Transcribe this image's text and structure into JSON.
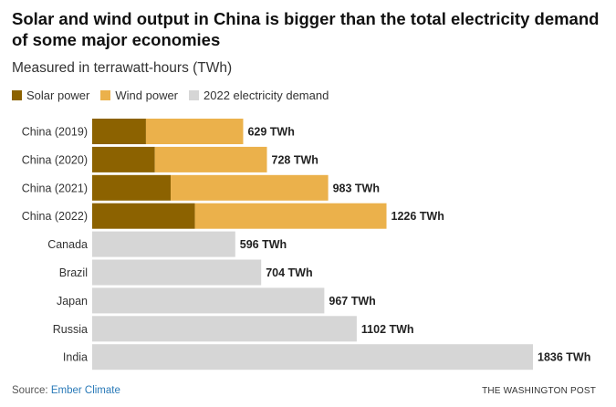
{
  "title": "Solar and wind output in China is bigger than the total electricity demand of some major economies",
  "subtitle": "Measured in terrawatt-hours (TWh)",
  "legend": [
    {
      "label": "Solar power",
      "color": "#8c6200"
    },
    {
      "label": "Wind power",
      "color": "#ebb14b"
    },
    {
      "label": "2022 electricity demand",
      "color": "#d6d6d6"
    }
  ],
  "chart_data": {
    "type": "bar",
    "orientation": "horizontal",
    "stacked": true,
    "unit": "TWh",
    "title": "Solar and wind output in China is bigger than the total electricity demand of some major economies",
    "xlim": [
      0,
      1836
    ],
    "categories": [
      "China (2019)",
      "China (2020)",
      "China (2021)",
      "China (2022)",
      "Canada",
      "Brazil",
      "Japan",
      "Russia",
      "India"
    ],
    "series": [
      {
        "name": "Solar power",
        "color": "#8c6200",
        "values": [
          224,
          261,
          327,
          428,
          null,
          null,
          null,
          null,
          null
        ]
      },
      {
        "name": "Wind power",
        "color": "#ebb14b",
        "values": [
          405,
          467,
          656,
          798,
          null,
          null,
          null,
          null,
          null
        ]
      },
      {
        "name": "2022 electricity demand",
        "color": "#d6d6d6",
        "values": [
          null,
          null,
          null,
          null,
          596,
          704,
          967,
          1102,
          1836
        ]
      }
    ],
    "data_labels": [
      "629 TWh",
      "728 TWh",
      "983 TWh",
      "1226 TWh",
      "596 TWh",
      "704 TWh",
      "967 TWh",
      "1102 TWh",
      "1836 TWh"
    ]
  },
  "source": {
    "prefix": "Source: ",
    "name": "Ember Climate"
  },
  "credit": "THE WASHINGTON POST"
}
